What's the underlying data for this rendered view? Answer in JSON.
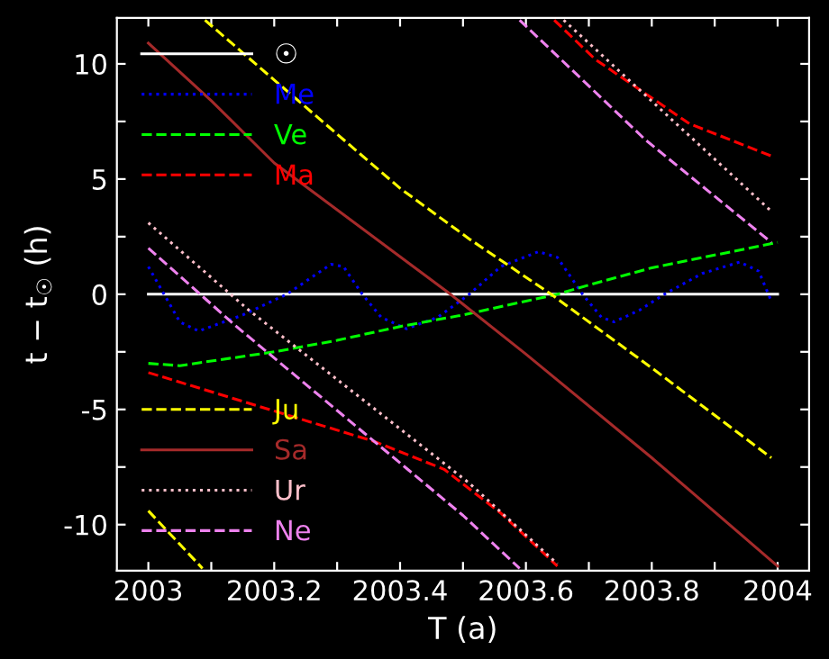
{
  "chart_data": {
    "type": "line",
    "xlabel": "T (a)",
    "ylabel": "t − t$_{☉}$ (h)",
    "xlim": [
      2002.95,
      2004.05
    ],
    "ylim": [
      -12,
      12
    ],
    "xticks": [
      2003,
      {
        "value": 2003.1,
        "label": null
      },
      2003.2,
      {
        "value": 2003.3,
        "label": null
      },
      2003.4,
      {
        "value": 2003.5,
        "label": null
      },
      2003.6,
      {
        "value": 2003.7,
        "label": null
      },
      2003.8,
      {
        "value": 2003.9,
        "label": null
      },
      2004
    ],
    "yticks": [
      -10,
      {
        "value": -7.5,
        "label": null
      },
      -5,
      {
        "value": -2.5,
        "label": null
      },
      0,
      {
        "value": 2.5,
        "label": null
      },
      5,
      {
        "value": 7.5,
        "label": null
      },
      10
    ],
    "grid": false,
    "legend": "left",
    "series": [
      {
        "name": "☉",
        "color": "#ffffff",
        "line_style": "solid",
        "x": [
          2003.0,
          2004.0
        ],
        "values": [
          0,
          0
        ]
      },
      {
        "name": "Me",
        "color": "#0000ff",
        "line_style": "dotted",
        "x": [
          2003.0,
          2003.05,
          2003.08,
          2003.15,
          2003.22,
          2003.29,
          2003.31,
          2003.34,
          2003.37,
          2003.41,
          2003.46,
          2003.51,
          2003.56,
          2003.62,
          2003.65,
          2003.69,
          2003.72,
          2003.74,
          2003.78,
          2003.82,
          2003.88,
          2003.94,
          2003.97,
          2003.99
        ],
        "values": [
          1.2,
          -1.2,
          -1.6,
          -0.9,
          0,
          1.3,
          1.2,
          0,
          -1.0,
          -1.5,
          -1.0,
          0,
          1.2,
          1.85,
          1.6,
          0,
          -1.0,
          -1.2,
          -0.7,
          0,
          0.9,
          1.4,
          1.0,
          -0.3
        ]
      },
      {
        "name": "Ve",
        "color": "#00ff00",
        "line_style": "dashed",
        "x": [
          2003.0,
          2003.05,
          2003.1,
          2003.2,
          2003.3,
          2003.4,
          2003.5,
          2003.6,
          2003.65,
          2003.7,
          2003.8,
          2003.9,
          2004.0
        ],
        "values": [
          -3.0,
          -3.1,
          -2.9,
          -2.5,
          -2.0,
          -1.4,
          -0.9,
          -0.3,
          0,
          0.4,
          1.15,
          1.7,
          2.25
        ]
      },
      {
        "name": "Ma",
        "color": "#ff0000",
        "line_style": "dashed",
        "x": [
          2003.0,
          2003.36,
          2003.47,
          2003.56,
          2003.65,
          null,
          2003.645,
          2003.71,
          2003.86,
          2003.99
        ],
        "values": [
          -3.4,
          -6.4,
          -7.6,
          -9.5,
          -11.8,
          null,
          11.9,
          10.2,
          7.4,
          6.0
        ]
      },
      {
        "name": "Ju",
        "color": "#ffff00",
        "line_style": "dashed",
        "x": [
          2003.0,
          2003.086,
          null,
          2003.09,
          2003.2,
          2003.4,
          2003.51,
          2003.64,
          2003.8,
          2003.99
        ],
        "values": [
          -9.4,
          -11.9,
          null,
          11.9,
          9.3,
          4.6,
          2.4,
          0,
          -3.2,
          -7.1
        ]
      },
      {
        "name": "Sa",
        "color": "#a52a2a",
        "line_style": "solid",
        "x": [
          2003.0,
          2003.1,
          2003.2,
          2003.48,
          2003.6,
          2003.8,
          2004.0
        ],
        "values": [
          10.9,
          8.4,
          5.7,
          0,
          -2.6,
          -7.1,
          -11.8
        ]
      },
      {
        "name": "Ur",
        "color": "#ffc0cb",
        "line_style": "dotted",
        "x": [
          2003.0,
          2003.16,
          2003.51,
          2003.65,
          null,
          2003.66,
          2003.7,
          2003.99
        ],
        "values": [
          3.1,
          -0.7,
          -8.2,
          -11.7,
          null,
          11.9,
          10.9,
          3.6
        ]
      },
      {
        "name": "Ne",
        "color": "#ee82ee",
        "line_style": "dashed",
        "x": [
          2003.0,
          2003.14,
          2003.5,
          2003.59,
          null,
          2003.59,
          2003.79,
          2003.99
        ],
        "values": [
          2.0,
          -1.4,
          -9.6,
          -11.9,
          null,
          11.9,
          6.7,
          2.25
        ]
      }
    ]
  }
}
